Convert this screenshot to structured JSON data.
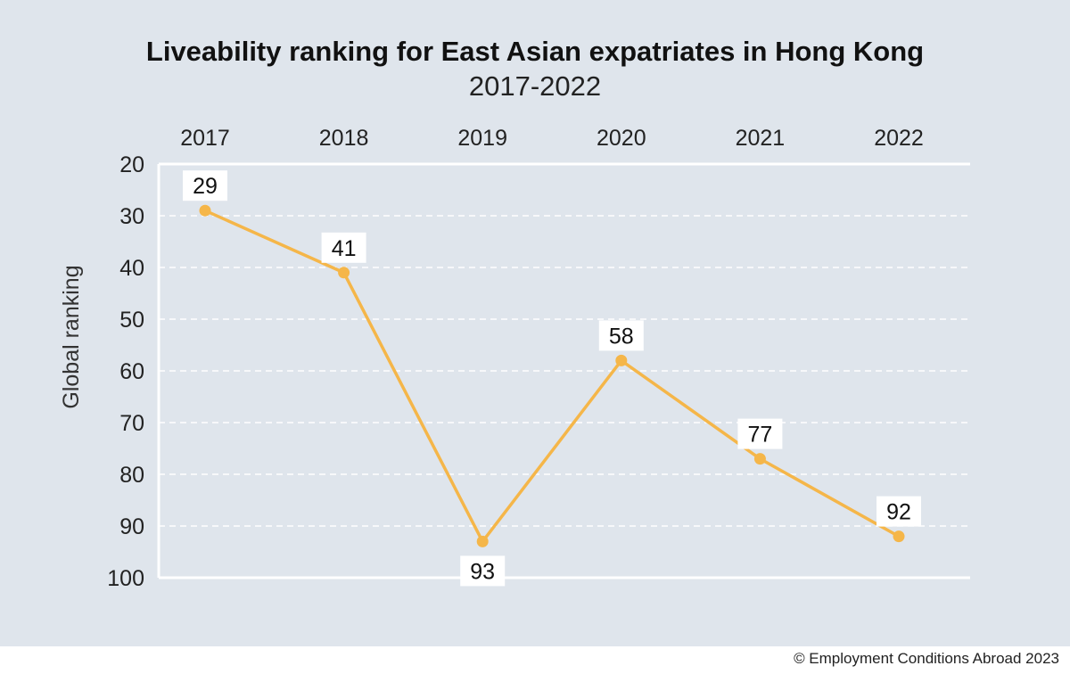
{
  "chart_data": {
    "type": "line",
    "title": "Liveability ranking for East Asian expatriates in Hong Kong",
    "subtitle": "2017-2022",
    "categories": [
      "2017",
      "2018",
      "2019",
      "2020",
      "2021",
      "2022"
    ],
    "series": [
      {
        "name": "Global ranking",
        "values": [
          29,
          41,
          93,
          58,
          77,
          92
        ]
      }
    ],
    "data_labels": [
      "29",
      "41",
      "93",
      "58",
      "77",
      "92"
    ],
    "ylabel": "Global ranking",
    "xlabel": "",
    "y_ticks": [
      20,
      30,
      40,
      50,
      60,
      70,
      80,
      90,
      100
    ],
    "y_tick_labels": [
      "20",
      "30",
      "40",
      "50",
      "60",
      "70",
      "80",
      "90",
      "100"
    ],
    "ylim": [
      20,
      100
    ],
    "y_inverted": true,
    "x_axis_position": "top",
    "grid": true,
    "line_color": "#f5b649",
    "background_color": "#dfe5ec"
  },
  "footer": {
    "copyright": "© Employment Conditions Abroad 2023"
  }
}
